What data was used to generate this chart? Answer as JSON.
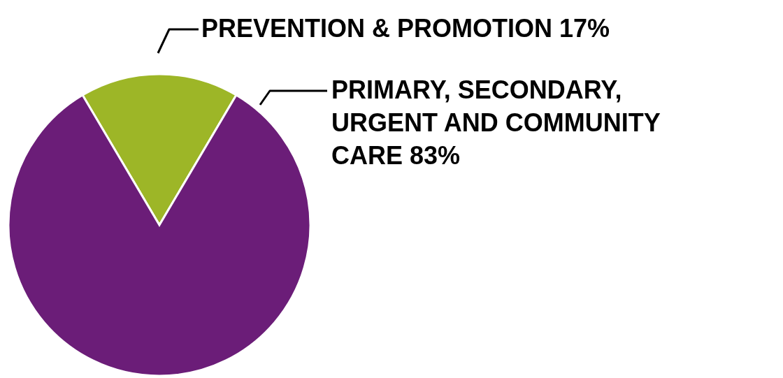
{
  "chart_data": {
    "type": "pie",
    "categories": [
      "PREVENTION & PROMOTION",
      "PRIMARY, SECONDARY, URGENT AND COMMUNITY CARE"
    ],
    "values": [
      17,
      83
    ],
    "colors": [
      "#9db627",
      "#6b1d78"
    ],
    "value_labels": [
      "17%",
      "83%"
    ]
  }
}
